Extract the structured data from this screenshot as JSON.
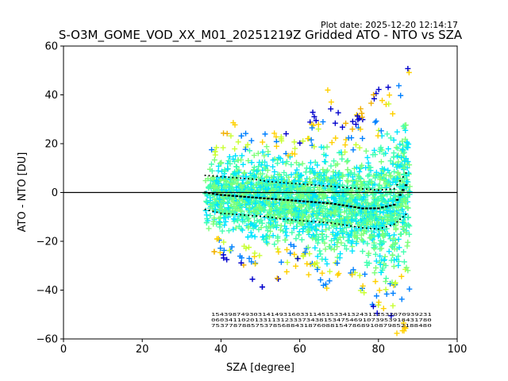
{
  "plot_date_label": "Plot date: 2025-12-20 12:14:17",
  "chart_data": {
    "type": "scatter",
    "title": "S-O3M_GOME_VOD_XX_M01_20251219Z Gridded ATO - NTO vs SZA",
    "xlabel": "SZA [degree]",
    "ylabel": "ATO - NTO [DU]",
    "xlim": [
      0,
      100
    ],
    "ylim": [
      -60,
      60
    ],
    "xticks": [
      0,
      20,
      40,
      60,
      80,
      100
    ],
    "yticks": [
      -60,
      -40,
      -20,
      0,
      20,
      40,
      60
    ],
    "xtick_labels": [
      "0",
      "20",
      "40",
      "60",
      "80",
      "100"
    ],
    "ytick_labels": [
      "−60",
      "−40",
      "−20",
      "0",
      "20",
      "40",
      "60"
    ],
    "reference_line_y": 0,
    "marker": "+",
    "colormap": [
      "#0000cc",
      "#0080ff",
      "#00e5ff",
      "#40ffb0",
      "#7cff79",
      "#c8ff30",
      "#ffd000",
      "#f0b000"
    ],
    "scatter_sza_range": [
      36,
      88
    ],
    "scatter_spread_bands": [
      {
        "sza": 36,
        "lo": -24,
        "hi": 22
      },
      {
        "sza": 44,
        "lo": -30,
        "hi": 30
      },
      {
        "sza": 52,
        "lo": -42,
        "hi": 28
      },
      {
        "sza": 60,
        "lo": -30,
        "hi": 22
      },
      {
        "sza": 66,
        "lo": -40,
        "hi": 46
      },
      {
        "sza": 72,
        "lo": -36,
        "hi": 30
      },
      {
        "sza": 78,
        "lo": -50,
        "hi": 40
      },
      {
        "sza": 84,
        "lo": -58,
        "hi": 48
      },
      {
        "sza": 88,
        "lo": -58,
        "hi": 55
      }
    ],
    "series": [
      {
        "name": "mean",
        "x": [
          36,
          40,
          44,
          48,
          52,
          56,
          60,
          64,
          68,
          72,
          76,
          80,
          84,
          87
        ],
        "y": [
          0,
          -1,
          -1.5,
          -2,
          -2.5,
          -3,
          -3.5,
          -4,
          -4.5,
          -5.5,
          -6.5,
          -6.5,
          -5,
          3
        ]
      },
      {
        "name": "mean + std",
        "x": [
          36,
          40,
          44,
          48,
          52,
          56,
          60,
          64,
          68,
          72,
          76,
          80,
          84,
          87
        ],
        "y": [
          7,
          6.5,
          6,
          5.5,
          4.5,
          4,
          3.5,
          3,
          2.5,
          2,
          1.5,
          1,
          1.5,
          8
        ]
      },
      {
        "name": "mean - std",
        "x": [
          36,
          40,
          44,
          48,
          52,
          56,
          60,
          64,
          68,
          72,
          76,
          80,
          84,
          87
        ],
        "y": [
          -7,
          -8.5,
          -9,
          -9.5,
          -10,
          -11,
          -11.5,
          -12,
          -12.5,
          -13.5,
          -14.5,
          -15,
          -13,
          -9
        ]
      }
    ],
    "annotation_rows": [
      "1543987493031414931603311451533413243111532070939231",
      "060341102013311312333734381534754691073953918431780",
      "75377878857537856884318760881547868910879852188480"
    ]
  }
}
